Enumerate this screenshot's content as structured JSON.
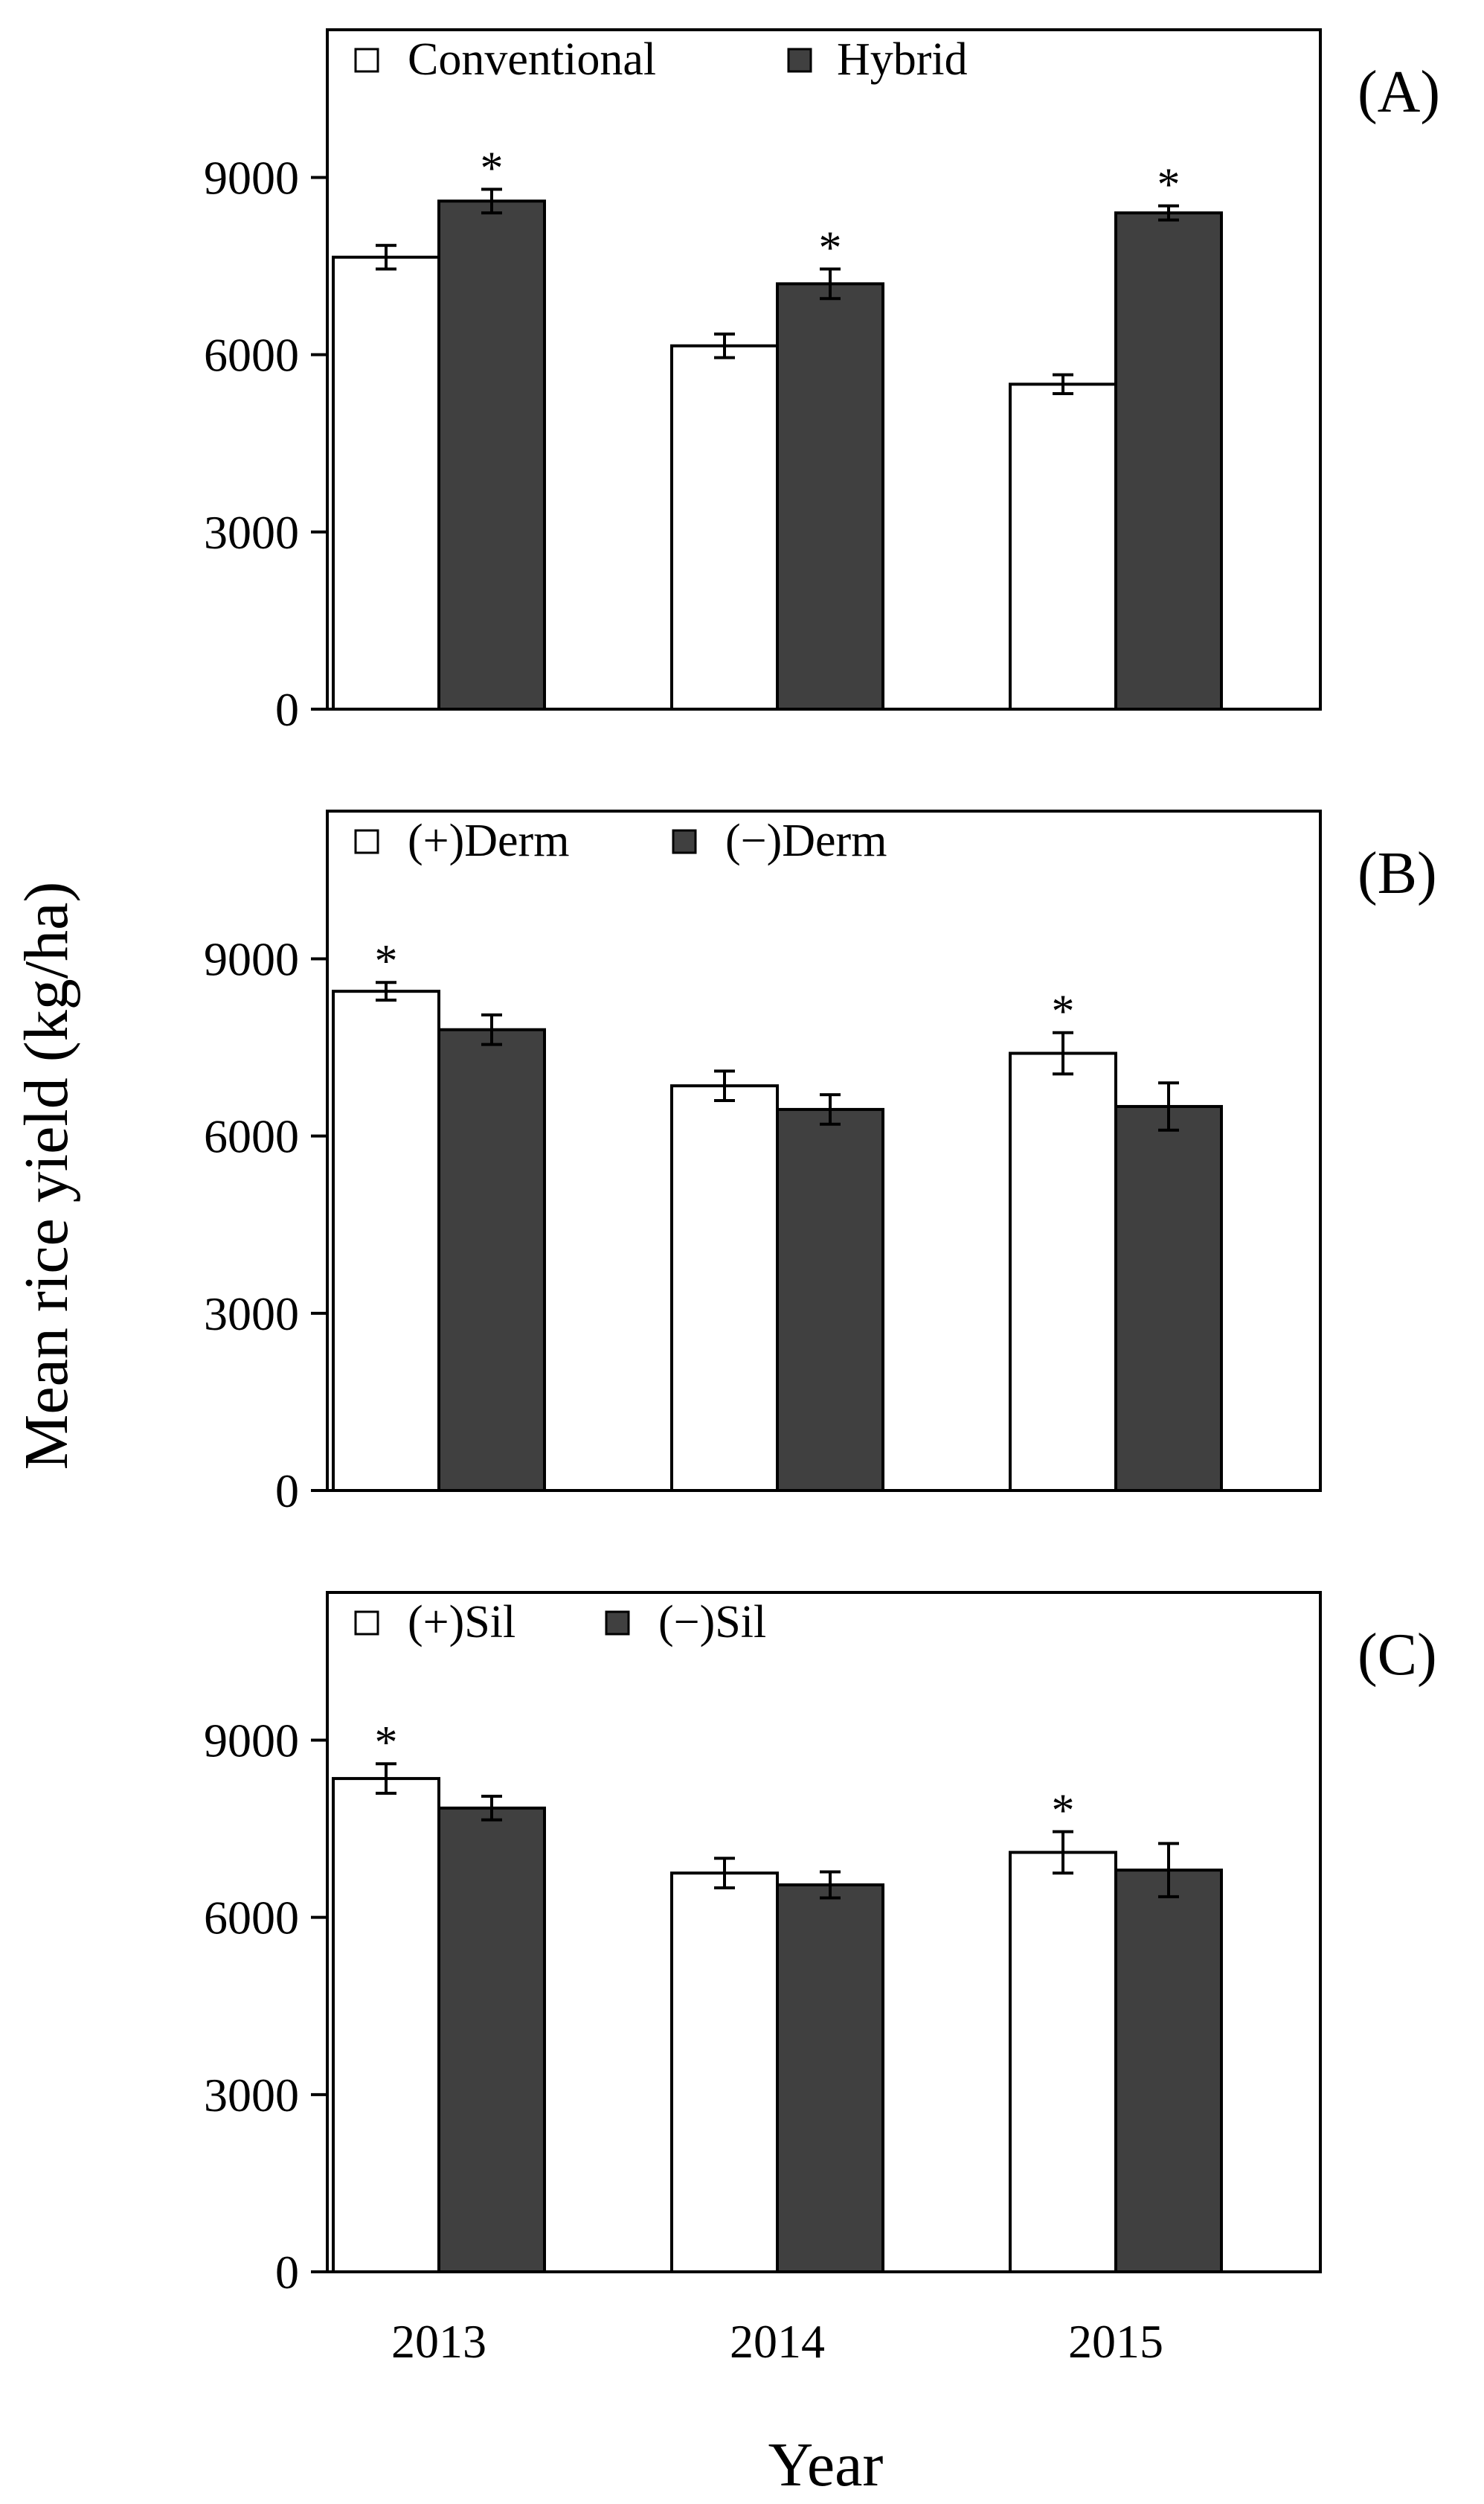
{
  "figure": {
    "ylabel": "Mean rice yield (kg/ha)",
    "xlabel": "Year",
    "categories": [
      "2013",
      "2014",
      "2015"
    ],
    "ylim": [
      0,
      11500
    ],
    "yticks": [
      "0",
      "3000",
      "6000",
      "9000"
    ],
    "colors": {
      "light": "#ffffff",
      "dark": "#404040",
      "axis": "#000000"
    }
  },
  "chart_data": [
    {
      "type": "bar",
      "panel_label": "(A)",
      "categories": [
        "2013",
        "2014",
        "2015"
      ],
      "ylim": [
        0,
        11500
      ],
      "series": [
        {
          "name": "Conventional",
          "color": "#ffffff",
          "values": [
            7650,
            6150,
            5500
          ],
          "errors": [
            200,
            200,
            160
          ],
          "significant": [
            false,
            false,
            false
          ]
        },
        {
          "name": "Hybrid",
          "color": "#404040",
          "values": [
            8600,
            7200,
            8400
          ],
          "errors": [
            200,
            250,
            120
          ],
          "significant": [
            true,
            true,
            true
          ]
        }
      ],
      "significance_marker": "*"
    },
    {
      "type": "bar",
      "panel_label": "(B)",
      "categories": [
        "2013",
        "2014",
        "2015"
      ],
      "ylim": [
        0,
        11500
      ],
      "series": [
        {
          "name": "(+)Derm",
          "color": "#ffffff",
          "values": [
            8450,
            6850,
            7400
          ],
          "errors": [
            150,
            250,
            350
          ],
          "significant": [
            true,
            false,
            true
          ]
        },
        {
          "name": "(−)Derm",
          "color": "#404040",
          "values": [
            7800,
            6450,
            6500
          ],
          "errors": [
            250,
            250,
            400
          ],
          "significant": [
            false,
            false,
            false
          ]
        }
      ],
      "significance_marker": "*"
    },
    {
      "type": "bar",
      "panel_label": "(C)",
      "categories": [
        "2013",
        "2014",
        "2015"
      ],
      "ylim": [
        0,
        11500
      ],
      "series": [
        {
          "name": "(+)Sil",
          "color": "#ffffff",
          "values": [
            8350,
            6750,
            7100
          ],
          "errors": [
            250,
            250,
            350
          ],
          "significant": [
            true,
            false,
            true
          ]
        },
        {
          "name": "(−)Sil",
          "color": "#404040",
          "values": [
            7850,
            6550,
            6800
          ],
          "errors": [
            200,
            220,
            450
          ],
          "significant": [
            false,
            false,
            false
          ]
        }
      ],
      "significance_marker": "*"
    }
  ]
}
